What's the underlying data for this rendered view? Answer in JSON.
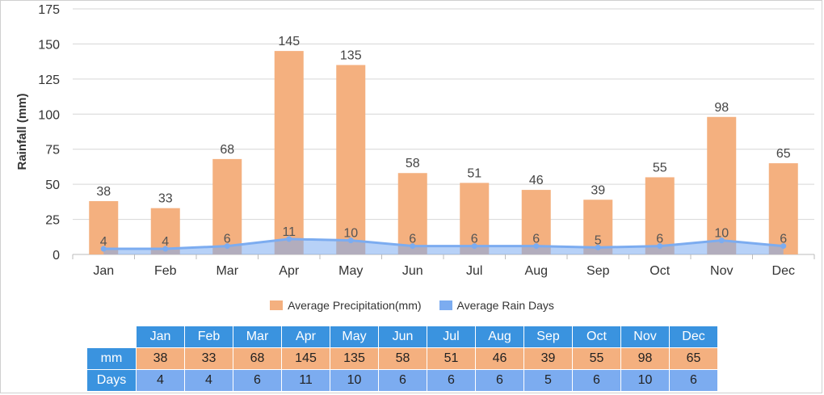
{
  "chart_data": {
    "type": "bar",
    "categories": [
      "Jan",
      "Feb",
      "Mar",
      "Apr",
      "May",
      "Jun",
      "Jul",
      "Aug",
      "Sep",
      "Oct",
      "Nov",
      "Dec"
    ],
    "series": [
      {
        "name": "Average Precipitation(mm)",
        "type": "bar",
        "values": [
          38,
          33,
          68,
          145,
          135,
          58,
          51,
          46,
          39,
          55,
          98,
          65
        ]
      },
      {
        "name": "Average Rain Days",
        "type": "area",
        "values": [
          4,
          4,
          6,
          11,
          10,
          6,
          6,
          6,
          5,
          6,
          10,
          6
        ]
      }
    ],
    "ylabel": "Rainfall (mm)",
    "ylim": [
      0,
      175
    ],
    "yticks": [
      0,
      25,
      50,
      75,
      100,
      125,
      150,
      175
    ],
    "grid": true,
    "legend_placement": "bottom-center",
    "colors": {
      "precipitation": "#f4b07f",
      "rain_days": "#7cacf0",
      "table_header": "#3a93df"
    }
  },
  "legend": {
    "precipitation_label": "Average Precipitation(mm)",
    "rain_days_label": "Average Rain Days"
  },
  "table": {
    "row_labels": {
      "mm": "mm",
      "days": "Days"
    }
  }
}
